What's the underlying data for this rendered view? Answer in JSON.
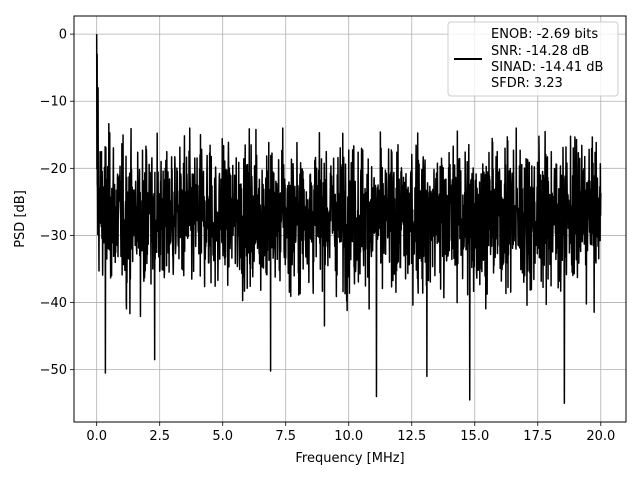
{
  "chart_data": {
    "type": "line",
    "title": "",
    "xlabel": "Frequency [MHz]",
    "ylabel": "PSD [dB]",
    "xlim": [
      -0.9,
      21.0
    ],
    "ylim": [
      -57.8,
      2.7
    ],
    "xticks": [
      0.0,
      2.5,
      5.0,
      7.5,
      10.0,
      12.5,
      15.0,
      17.5,
      20.0
    ],
    "xtick_labels": [
      "0.0",
      "2.5",
      "5.0",
      "7.5",
      "10.0",
      "12.5",
      "15.0",
      "17.5",
      "20.0"
    ],
    "yticks": [
      0,
      -10,
      -20,
      -30,
      -40,
      -50
    ],
    "ytick_labels": [
      "0",
      "−10",
      "−20",
      "−30",
      "−40",
      "−50"
    ],
    "grid": true,
    "legend_position": "top-right",
    "legend": [
      "ENOB: -2.69 bits",
      "SNR: -14.28 dB",
      "SINAD: -14.41 dB",
      "SFDR: 3.23"
    ],
    "line_color": "#000000",
    "series": [
      {
        "x_start": 0.0,
        "x_end": 20.0,
        "noise_floor_mean": -27,
        "upper_envelope": -14,
        "deep_minima": [
          {
            "x": 0.35,
            "y": -50.5
          },
          {
            "x": 2.3,
            "y": -48.5
          },
          {
            "x": 6.9,
            "y": -50.2
          },
          {
            "x": 11.1,
            "y": -54.0
          },
          {
            "x": 13.1,
            "y": -51.0
          },
          {
            "x": 14.8,
            "y": -54.5
          },
          {
            "x": 18.55,
            "y": -55.0
          }
        ],
        "peaks": [
          {
            "x": 0.0,
            "y": 0.0
          },
          {
            "x": 0.02,
            "y": -3.0
          },
          {
            "x": 0.05,
            "y": -8.0
          }
        ]
      }
    ]
  }
}
